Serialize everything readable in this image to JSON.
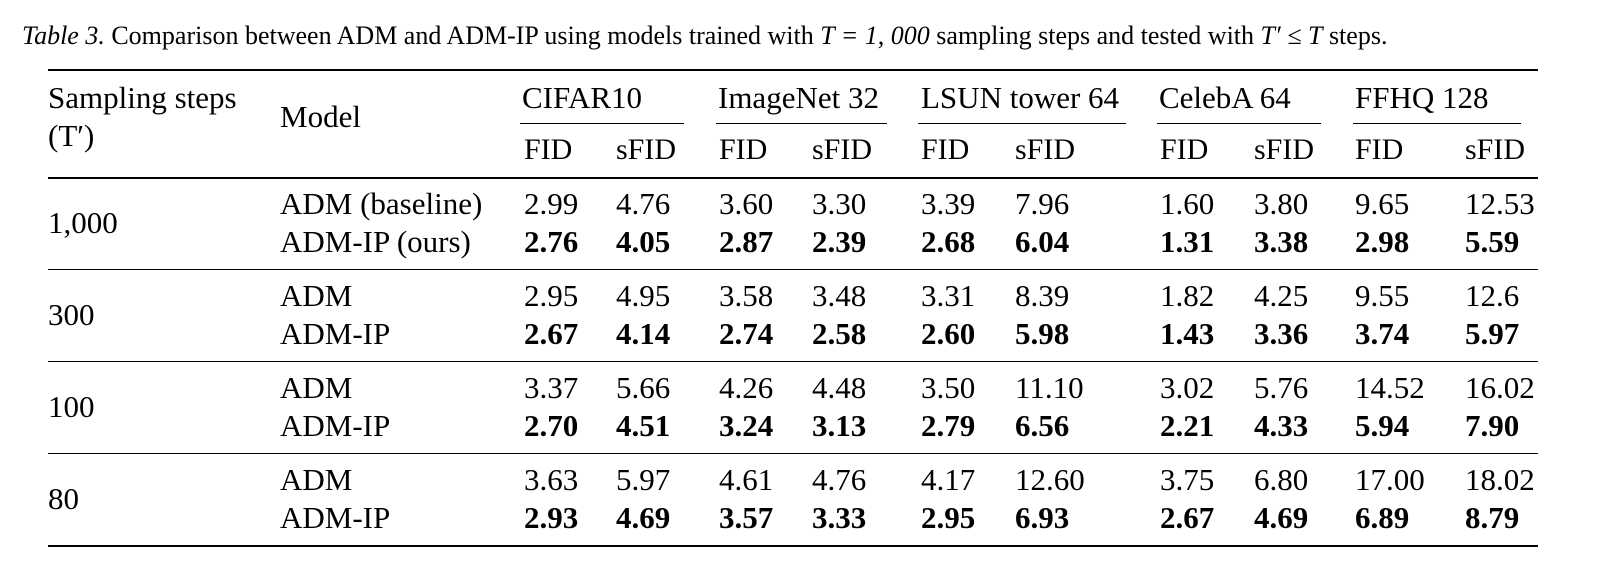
{
  "caption": {
    "label": "Table 3.",
    "text_a": " Comparison between ADM and ADM-IP using models trained with ",
    "math_a": "T = 1, 000",
    "text_b": " sampling steps and tested with ",
    "math_b": "T′ ≤ T",
    "text_c": " steps."
  },
  "header": {
    "steps_line1": "Sampling steps",
    "steps_line2": "(T′)",
    "model": "Model",
    "datasets": [
      "CIFAR10",
      "ImageNet 32",
      "LSUN tower 64",
      "CelebA 64",
      "FFHQ 128"
    ],
    "fid": "FID",
    "sfid": "sFID"
  },
  "groups": [
    {
      "steps": "1,000",
      "rows": [
        {
          "model": "ADM (baseline)",
          "bold": false,
          "values": [
            "2.99",
            "4.76",
            "3.60",
            "3.30",
            "3.39",
            "7.96",
            "1.60",
            "3.80",
            "9.65",
            "12.53"
          ]
        },
        {
          "model": "ADM-IP (ours)",
          "bold": true,
          "values": [
            "2.76",
            "4.05",
            "2.87",
            "2.39",
            "2.68",
            "6.04",
            "1.31",
            "3.38",
            "2.98",
            "5.59"
          ]
        }
      ]
    },
    {
      "steps": "300",
      "rows": [
        {
          "model": "ADM",
          "bold": false,
          "values": [
            "2.95",
            "4.95",
            "3.58",
            "3.48",
            "3.31",
            "8.39",
            "1.82",
            "4.25",
            "9.55",
            "12.6"
          ]
        },
        {
          "model": "ADM-IP",
          "bold": true,
          "values": [
            "2.67",
            "4.14",
            "2.74",
            "2.58",
            "2.60",
            "5.98",
            "1.43",
            "3.36",
            "3.74",
            "5.97"
          ]
        }
      ]
    },
    {
      "steps": "100",
      "rows": [
        {
          "model": "ADM",
          "bold": false,
          "values": [
            "3.37",
            "5.66",
            "4.26",
            "4.48",
            "3.50",
            "11.10",
            "3.02",
            "5.76",
            "14.52",
            "16.02"
          ]
        },
        {
          "model": "ADM-IP",
          "bold": true,
          "values": [
            "2.70",
            "4.51",
            "3.24",
            "3.13",
            "2.79",
            "6.56",
            "2.21",
            "4.33",
            "5.94",
            "7.90"
          ]
        }
      ]
    },
    {
      "steps": "80",
      "rows": [
        {
          "model": "ADM",
          "bold": false,
          "values": [
            "3.63",
            "5.97",
            "4.61",
            "4.76",
            "4.17",
            "12.60",
            "3.75",
            "6.80",
            "17.00",
            "18.02"
          ]
        },
        {
          "model": "ADM-IP",
          "bold": true,
          "values": [
            "2.93",
            "4.69",
            "3.57",
            "3.33",
            "2.95",
            "6.93",
            "2.67",
            "4.69",
            "6.89",
            "8.79"
          ]
        }
      ]
    }
  ]
}
